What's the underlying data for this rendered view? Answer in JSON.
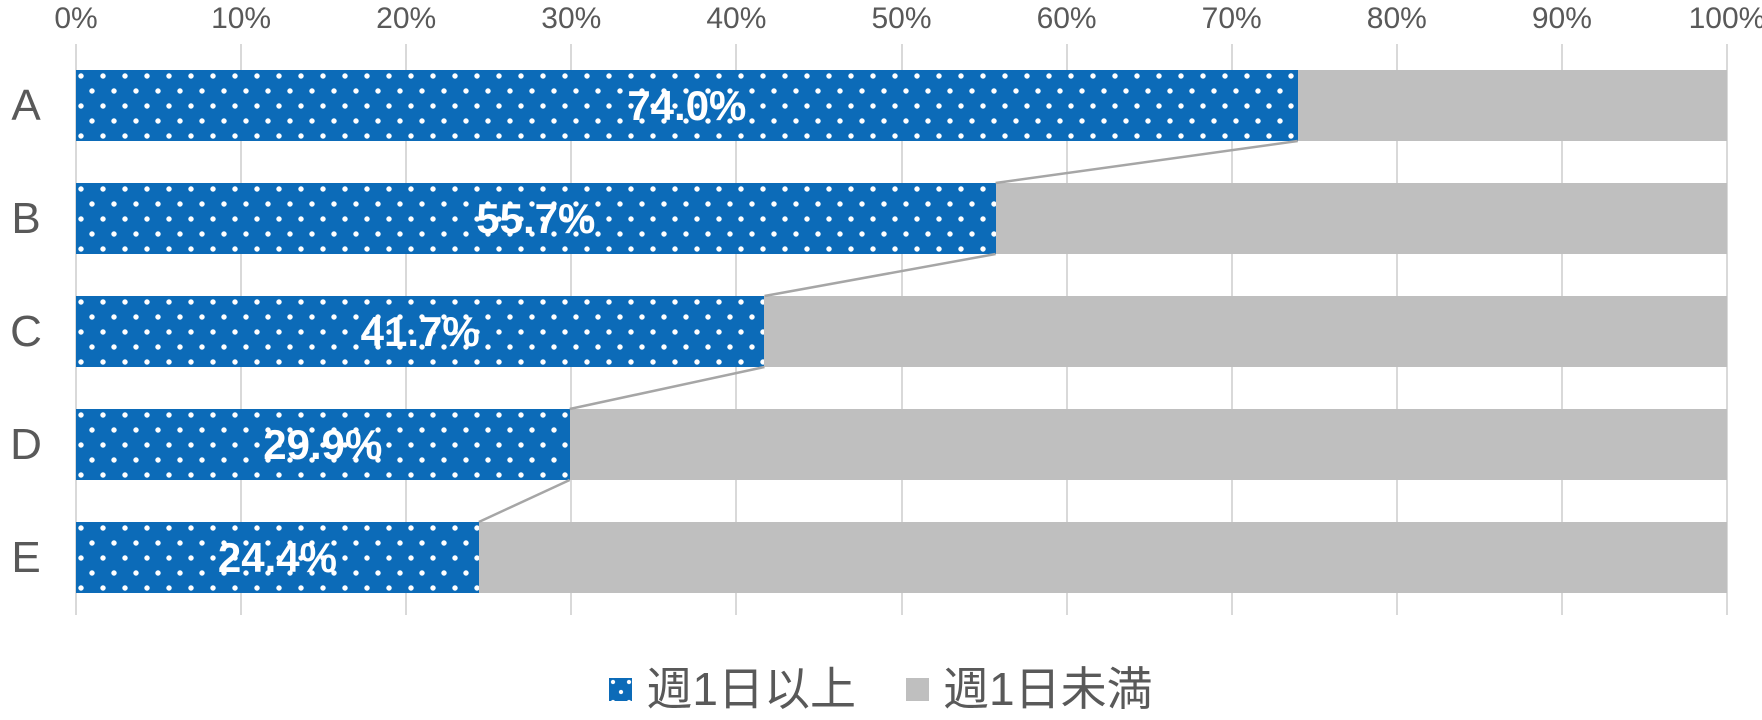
{
  "chart_data": {
    "type": "bar",
    "subtype": "stacked-horizontal",
    "title": "",
    "categories": [
      "A",
      "B",
      "C",
      "D",
      "E"
    ],
    "series": [
      {
        "name": "週1日以上",
        "values": [
          74.0,
          55.7,
          41.7,
          29.9,
          24.4
        ],
        "data_labels": [
          "74.0%",
          "55.7%",
          "41.7%",
          "29.9%",
          "24.4%"
        ],
        "color": "#0c6bb8",
        "fill_pattern": "white-dots"
      },
      {
        "name": "週1日未満",
        "values": [
          26.0,
          44.3,
          58.3,
          70.1,
          75.6
        ],
        "data_labels": [],
        "color": "#bfbfbf",
        "fill_pattern": "solid"
      }
    ],
    "x_axis": {
      "position": "top",
      "min": 0,
      "max": 100,
      "tick_interval": 10,
      "tick_labels": [
        "0%",
        "10%",
        "20%",
        "30%",
        "40%",
        "50%",
        "60%",
        "70%",
        "80%",
        "90%",
        "100%"
      ]
    },
    "y_axis": {
      "categories_top_to_bottom": [
        "A",
        "B",
        "C",
        "D",
        "E"
      ]
    },
    "grid": true,
    "series_lines": true,
    "legend": {
      "position": "bottom",
      "entries": [
        {
          "label": "週1日以上",
          "color": "#0c6bb8",
          "pattern": "white-dots"
        },
        {
          "label": "週1日未満",
          "color": "#bfbfbf",
          "pattern": "solid"
        }
      ]
    },
    "colors": {
      "primary_bar": "#0c6bb8",
      "remainder_bar": "#bfbfbf",
      "gridline": "#d9d9d9",
      "series_line": "#a6a6a6",
      "axis_text": "#595959",
      "category_text": "#595959",
      "data_label_text": "#ffffff",
      "legend_text": "#595959",
      "background": "#ffffff"
    }
  }
}
